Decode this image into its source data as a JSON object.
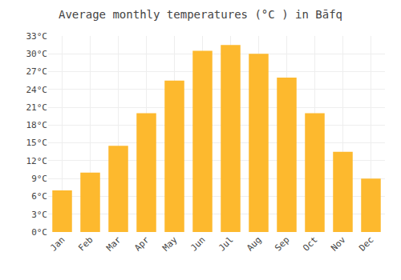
{
  "chart_data": {
    "type": "bar",
    "title": "Average monthly temperatures (°C ) in Bāfq",
    "categories": [
      "Jan",
      "Feb",
      "Mar",
      "Apr",
      "May",
      "Jun",
      "Jul",
      "Aug",
      "Sep",
      "Oct",
      "Nov",
      "Dec"
    ],
    "values": [
      7,
      10,
      14.5,
      20,
      25.5,
      30.5,
      31.5,
      30,
      26,
      20,
      13.5,
      9
    ],
    "color": "#FDB92E",
    "ylim": [
      0,
      33
    ],
    "yticks": [
      {
        "value": 0,
        "label": "0°C"
      },
      {
        "value": 3,
        "label": "3°C"
      },
      {
        "value": 6,
        "label": "6°C"
      },
      {
        "value": 9,
        "label": "9°C"
      },
      {
        "value": 12,
        "label": "12°C"
      },
      {
        "value": 15,
        "label": "15°C"
      },
      {
        "value": 18,
        "label": "18°C"
      },
      {
        "value": 21,
        "label": "21°C"
      },
      {
        "value": 24,
        "label": "24°C"
      },
      {
        "value": 27,
        "label": "27°C"
      },
      {
        "value": 30,
        "label": "30°C"
      },
      {
        "value": 33,
        "label": "33°C"
      }
    ],
    "grid": true
  }
}
